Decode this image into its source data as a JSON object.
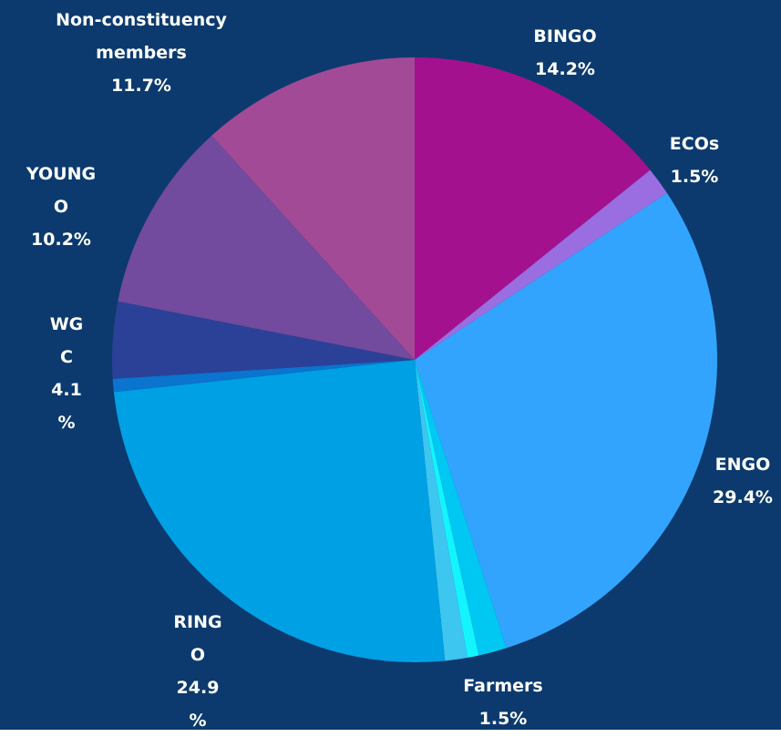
{
  "chart_data": {
    "type": "pie",
    "categories": [
      "BINGO",
      "ECOs",
      "ENGO",
      "Farmers",
      null,
      null,
      "RINGO",
      null,
      "WGC",
      "YOUNGO",
      "Non-constituency members"
    ],
    "values": [
      14.2,
      1.5,
      29.4,
      1.5,
      0.6,
      1.2,
      24.9,
      0.7,
      4.1,
      10.2,
      11.7
    ],
    "value_labels": [
      "14.2%",
      "1.5%",
      "29.4%",
      "1.5%",
      null,
      null,
      "24.9%",
      null,
      "4.1%",
      "10.2%",
      "11.7%"
    ],
    "colors": [
      "#a4118f",
      "#9a6ee0",
      "#32a4fe",
      "#00c8f2",
      "#14f4ff",
      "#3cc6f0",
      "#00a0e4",
      "#0a74cf",
      "#2b4197",
      "#724a9e",
      "#a34a96"
    ],
    "background": "#0c3a6e"
  }
}
